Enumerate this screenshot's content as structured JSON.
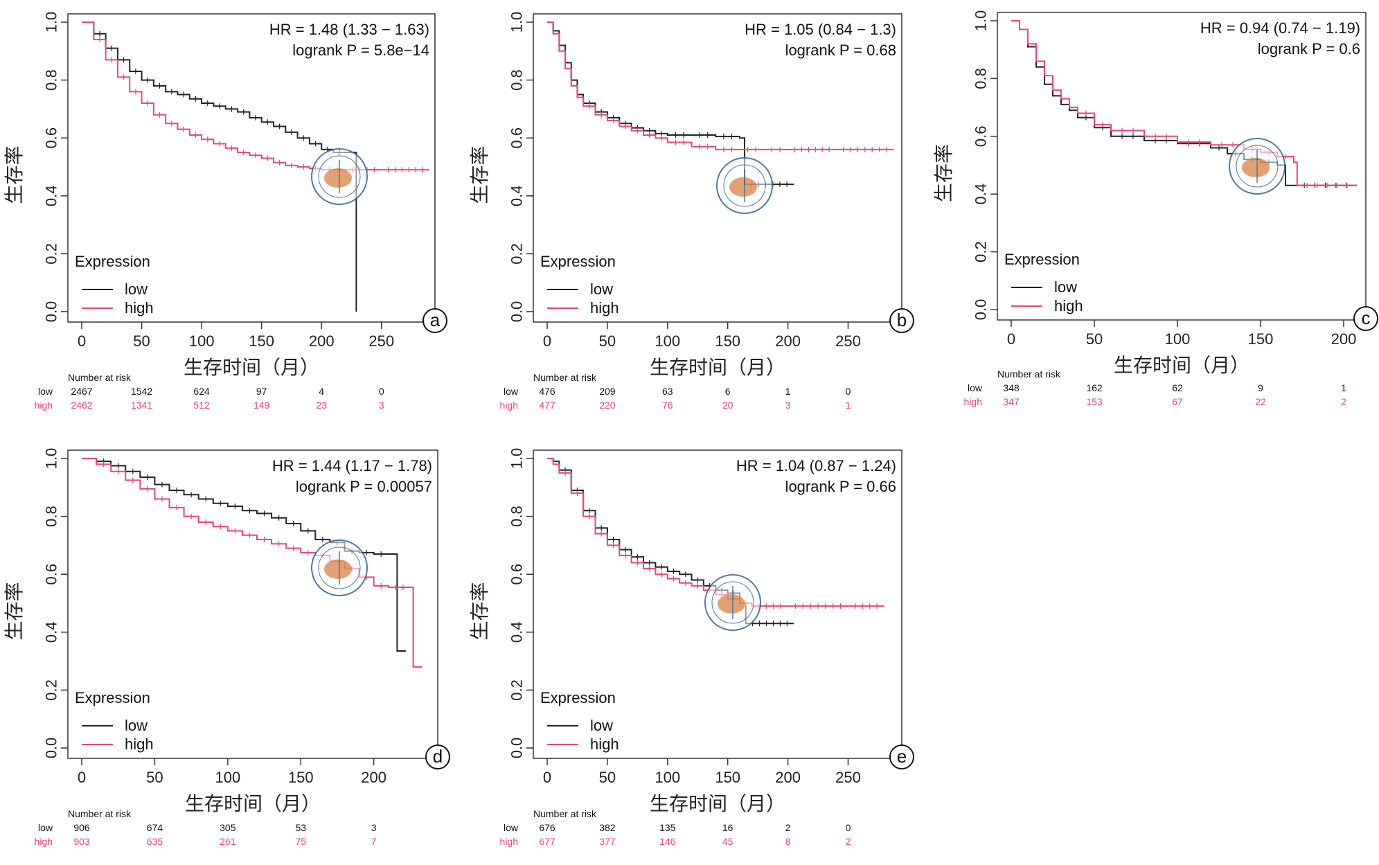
{
  "colors": {
    "low": "#222222",
    "high": "#e8457a",
    "seal": "#3a6a9a",
    "seal_fill": "#d9844a"
  },
  "chart_data": [
    {
      "type": "line",
      "panel_label": "a",
      "ylabel": "生存率",
      "xlabel": "生存时间（月）",
      "xlim": [
        0,
        290
      ],
      "ylim": [
        0,
        1
      ],
      "xticks": [
        0,
        50,
        100,
        150,
        200,
        250
      ],
      "yticks": [
        0.0,
        0.2,
        0.4,
        0.6,
        0.8,
        1.0
      ],
      "hr_text": "HR = 1.48 (1.33 − 1.63)",
      "p_text": "logrank P = 5.8e−14",
      "legend": {
        "title": "Expression",
        "low": "low",
        "high": "high"
      },
      "series": [
        {
          "name": "low",
          "x": [
            0,
            10,
            20,
            30,
            40,
            50,
            60,
            70,
            80,
            90,
            100,
            110,
            120,
            130,
            140,
            150,
            160,
            170,
            180,
            190,
            200,
            210,
            220,
            228,
            229
          ],
          "y": [
            1.0,
            0.96,
            0.91,
            0.87,
            0.83,
            0.8,
            0.78,
            0.76,
            0.75,
            0.735,
            0.72,
            0.71,
            0.7,
            0.69,
            0.67,
            0.655,
            0.64,
            0.62,
            0.6,
            0.58,
            0.56,
            0.55,
            0.55,
            0.55,
            0.0
          ]
        },
        {
          "name": "high",
          "x": [
            0,
            10,
            20,
            30,
            40,
            50,
            60,
            70,
            80,
            90,
            100,
            110,
            120,
            130,
            140,
            150,
            160,
            170,
            180,
            190,
            200,
            220,
            250,
            290
          ],
          "y": [
            1.0,
            0.94,
            0.87,
            0.81,
            0.76,
            0.72,
            0.68,
            0.65,
            0.63,
            0.61,
            0.595,
            0.58,
            0.565,
            0.55,
            0.54,
            0.53,
            0.515,
            0.505,
            0.5,
            0.495,
            0.49,
            0.49,
            0.49,
            0.49
          ]
        }
      ],
      "risk": {
        "title": "Number at risk",
        "times": [
          0,
          50,
          100,
          150,
          200,
          250
        ],
        "low_label": "low",
        "high_label": "high",
        "low": [
          "2467",
          "1542",
          "624",
          "97",
          "4",
          "0"
        ],
        "high": [
          "2462",
          "1341",
          "512",
          "149",
          "23",
          "3"
        ]
      }
    },
    {
      "type": "line",
      "panel_label": "b",
      "ylabel": "生存率",
      "xlabel": "生存时间（月）",
      "xlim": [
        0,
        290
      ],
      "ylim": [
        0,
        1
      ],
      "xticks": [
        0,
        50,
        100,
        150,
        200,
        250
      ],
      "yticks": [
        0.0,
        0.2,
        0.4,
        0.6,
        0.8,
        1.0
      ],
      "hr_text": "HR = 1.05 (0.84 − 1.3)",
      "p_text": "logrank P = 0.68",
      "legend": {
        "title": "Expression",
        "low": "low",
        "high": "high"
      },
      "series": [
        {
          "name": "low",
          "x": [
            0,
            5,
            10,
            15,
            20,
            25,
            30,
            40,
            50,
            60,
            70,
            80,
            90,
            100,
            120,
            140,
            160,
            163,
            164,
            205
          ],
          "y": [
            1.0,
            0.97,
            0.92,
            0.86,
            0.8,
            0.75,
            0.72,
            0.69,
            0.67,
            0.65,
            0.635,
            0.625,
            0.615,
            0.61,
            0.61,
            0.605,
            0.6,
            0.6,
            0.44,
            0.44
          ]
        },
        {
          "name": "high",
          "x": [
            0,
            5,
            10,
            15,
            20,
            25,
            30,
            40,
            50,
            60,
            70,
            80,
            90,
            100,
            120,
            140,
            160,
            180,
            200,
            240,
            288
          ],
          "y": [
            1.0,
            0.96,
            0.9,
            0.84,
            0.78,
            0.74,
            0.71,
            0.68,
            0.66,
            0.64,
            0.625,
            0.61,
            0.6,
            0.585,
            0.57,
            0.56,
            0.56,
            0.56,
            0.56,
            0.56,
            0.56
          ]
        }
      ],
      "risk": {
        "title": "Number at risk",
        "times": [
          0,
          50,
          100,
          150,
          200,
          250
        ],
        "low_label": "low",
        "high_label": "high",
        "low": [
          "476",
          "209",
          "63",
          "6",
          "1",
          "0"
        ],
        "high": [
          "477",
          "220",
          "76",
          "20",
          "3",
          "1"
        ]
      }
    },
    {
      "type": "line",
      "panel_label": "c",
      "ylabel": "生存率",
      "xlabel": "生存时间（月）",
      "xlim": [
        0,
        210
      ],
      "ylim": [
        0,
        1
      ],
      "xticks": [
        0,
        50,
        100,
        150,
        200
      ],
      "yticks": [
        0.0,
        0.2,
        0.4,
        0.6,
        0.8,
        1.0
      ],
      "hr_text": "HR = 0.94 (0.74 − 1.19)",
      "p_text": "logrank P = 0.6",
      "legend": {
        "title": "Expression",
        "low": "low",
        "high": "high"
      },
      "series": [
        {
          "name": "low",
          "x": [
            0,
            5,
            10,
            15,
            20,
            25,
            30,
            35,
            40,
            50,
            60,
            80,
            100,
            120,
            130,
            140,
            150,
            160,
            165,
            170,
            208
          ],
          "y": [
            1.0,
            0.97,
            0.91,
            0.84,
            0.78,
            0.74,
            0.71,
            0.69,
            0.665,
            0.63,
            0.6,
            0.585,
            0.575,
            0.56,
            0.54,
            0.52,
            0.51,
            0.5,
            0.43,
            0.43,
            0.43
          ]
        },
        {
          "name": "high",
          "x": [
            0,
            5,
            10,
            15,
            20,
            25,
            30,
            35,
            40,
            50,
            60,
            80,
            100,
            120,
            140,
            150,
            160,
            170,
            171,
            172,
            208
          ],
          "y": [
            1.0,
            0.97,
            0.92,
            0.86,
            0.81,
            0.76,
            0.73,
            0.7,
            0.68,
            0.64,
            0.62,
            0.6,
            0.58,
            0.57,
            0.555,
            0.545,
            0.53,
            0.51,
            0.51,
            0.43,
            0.43
          ]
        }
      ],
      "risk": {
        "title": "Number at risk",
        "times": [
          0,
          50,
          100,
          150,
          200
        ],
        "low_label": "low",
        "high_label": "high",
        "low": [
          "348",
          "162",
          "62",
          "9",
          "1"
        ],
        "high": [
          "347",
          "153",
          "67",
          "22",
          "2"
        ]
      }
    },
    {
      "type": "line",
      "panel_label": "d",
      "ylabel": "生存率",
      "xlabel": "生存时间（月）",
      "xlim": [
        0,
        240
      ],
      "ylim": [
        0,
        1
      ],
      "xticks": [
        0,
        50,
        100,
        150,
        200
      ],
      "yticks": [
        0.0,
        0.2,
        0.4,
        0.6,
        0.8,
        1.0
      ],
      "hr_text": "HR = 1.44 (1.17 − 1.78)",
      "p_text": "logrank P = 0.00057",
      "legend": {
        "title": "Expression",
        "low": "low",
        "high": "high"
      },
      "series": [
        {
          "name": "low",
          "x": [
            0,
            10,
            20,
            30,
            40,
            50,
            60,
            70,
            80,
            90,
            100,
            110,
            120,
            130,
            140,
            150,
            160,
            170,
            180,
            190,
            200,
            210,
            215,
            216,
            222
          ],
          "y": [
            1.0,
            0.99,
            0.975,
            0.955,
            0.935,
            0.91,
            0.89,
            0.875,
            0.86,
            0.845,
            0.835,
            0.82,
            0.81,
            0.795,
            0.775,
            0.75,
            0.72,
            0.71,
            0.68,
            0.675,
            0.67,
            0.67,
            0.67,
            0.335,
            0.335
          ]
        },
        {
          "name": "high",
          "x": [
            0,
            10,
            20,
            30,
            40,
            50,
            60,
            70,
            80,
            90,
            100,
            110,
            120,
            130,
            140,
            150,
            160,
            170,
            180,
            190,
            200,
            210,
            225,
            227,
            233
          ],
          "y": [
            1.0,
            0.98,
            0.955,
            0.925,
            0.895,
            0.86,
            0.83,
            0.8,
            0.78,
            0.765,
            0.75,
            0.735,
            0.72,
            0.705,
            0.69,
            0.675,
            0.665,
            0.645,
            0.62,
            0.59,
            0.56,
            0.555,
            0.555,
            0.28,
            0.28
          ]
        }
      ],
      "risk": {
        "title": "Number at risk",
        "times": [
          0,
          50,
          100,
          150,
          200
        ],
        "low_label": "low",
        "high_label": "high",
        "low": [
          "906",
          "674",
          "305",
          "53",
          "3"
        ],
        "high": [
          "903",
          "635",
          "261",
          "75",
          "7"
        ]
      }
    },
    {
      "type": "line",
      "panel_label": "e",
      "ylabel": "生存率",
      "xlabel": "生存时间（月）",
      "xlim": [
        0,
        290
      ],
      "ylim": [
        0,
        1
      ],
      "xticks": [
        0,
        50,
        100,
        150,
        200,
        250
      ],
      "yticks": [
        0.0,
        0.2,
        0.4,
        0.6,
        0.8,
        1.0
      ],
      "hr_text": "HR = 1.04 (0.87 − 1.24)",
      "p_text": "logrank P = 0.66",
      "legend": {
        "title": "Expression",
        "low": "low",
        "high": "high"
      },
      "series": [
        {
          "name": "low",
          "x": [
            0,
            5,
            10,
            20,
            30,
            40,
            50,
            60,
            70,
            80,
            90,
            100,
            110,
            120,
            130,
            140,
            150,
            160,
            165,
            205
          ],
          "y": [
            1.0,
            0.99,
            0.96,
            0.89,
            0.82,
            0.76,
            0.72,
            0.685,
            0.66,
            0.64,
            0.625,
            0.61,
            0.6,
            0.58,
            0.56,
            0.545,
            0.535,
            0.5,
            0.43,
            0.43
          ]
        },
        {
          "name": "high",
          "x": [
            0,
            5,
            10,
            20,
            30,
            40,
            50,
            60,
            70,
            80,
            90,
            100,
            110,
            120,
            130,
            140,
            150,
            160,
            170,
            200,
            250,
            280
          ],
          "y": [
            1.0,
            0.98,
            0.95,
            0.88,
            0.8,
            0.74,
            0.7,
            0.665,
            0.64,
            0.62,
            0.6,
            0.585,
            0.57,
            0.56,
            0.545,
            0.53,
            0.515,
            0.5,
            0.49,
            0.49,
            0.49,
            0.49
          ]
        }
      ],
      "risk": {
        "title": "Number at risk",
        "times": [
          0,
          50,
          100,
          150,
          200,
          250
        ],
        "low_label": "low",
        "high_label": "high",
        "low": [
          "676",
          "382",
          "135",
          "16",
          "2",
          "0"
        ],
        "high": [
          "677",
          "377",
          "146",
          "45",
          "8",
          "2"
        ]
      }
    }
  ]
}
